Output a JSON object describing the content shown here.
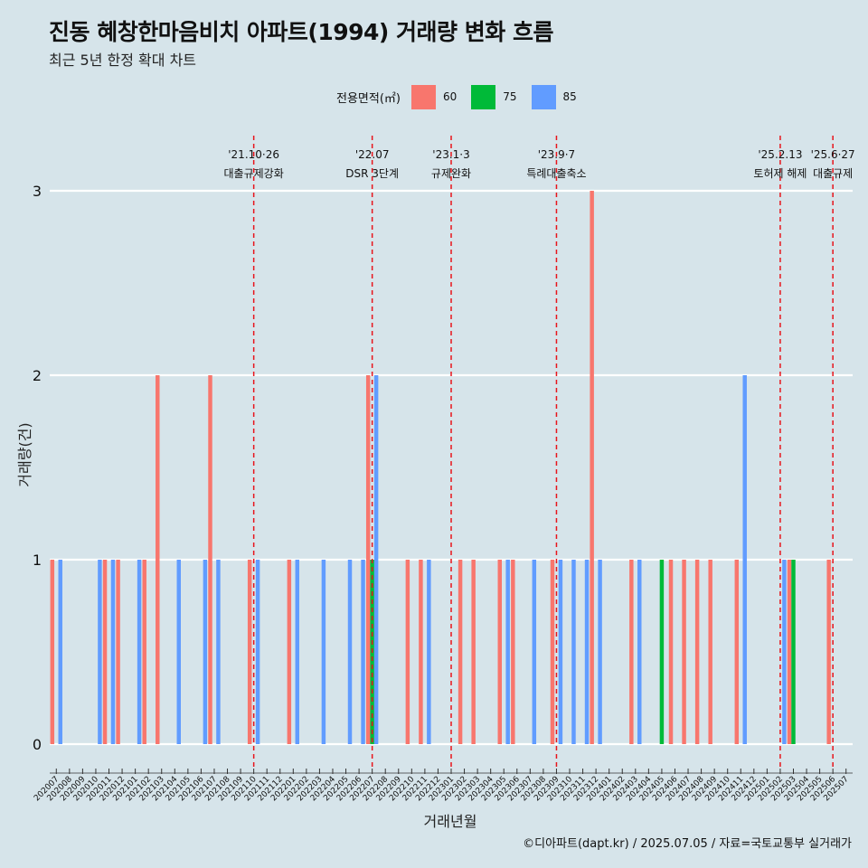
{
  "title": "진동 혜창한마음비치 아파트(1994) 거래량 변화 흐름",
  "subtitle": "최근 5년 한정 확대 차트",
  "caption": "©디아파트(dapt.kr) / 2025.07.05 / 자료=국토교통부 실거래가",
  "legend": {
    "title": "전용면적(㎡)",
    "items": [
      {
        "label": "60",
        "color": "#f8766d"
      },
      {
        "label": "75",
        "color": "#00ba38"
      },
      {
        "label": "85",
        "color": "#619cff"
      }
    ]
  },
  "chart_data": {
    "type": "bar",
    "xlabel": "거래년월",
    "ylabel": "거래량(건)",
    "ylim": [
      0,
      3
    ],
    "yticks": [
      0,
      1,
      2,
      3
    ],
    "grid": true,
    "categories": [
      "202007",
      "202008",
      "202009",
      "202010",
      "202011",
      "202012",
      "202101",
      "202102",
      "202103",
      "202104",
      "202105",
      "202106",
      "202107",
      "202108",
      "202109",
      "202110",
      "202111",
      "202112",
      "202201",
      "202202",
      "202203",
      "202204",
      "202205",
      "202206",
      "202207",
      "202208",
      "202209",
      "202210",
      "202211",
      "202212",
      "202301",
      "202302",
      "202303",
      "202304",
      "202305",
      "202306",
      "202307",
      "202308",
      "202309",
      "202310",
      "202311",
      "202312",
      "202401",
      "202402",
      "202403",
      "202404",
      "202405",
      "202406",
      "202407",
      "202408",
      "202409",
      "202410",
      "202411",
      "202412",
      "202501",
      "202502",
      "202503",
      "202504",
      "202505",
      "202506",
      "202507"
    ],
    "series": [
      {
        "name": "60",
        "color": "#f8766d",
        "values": [
          1,
          0,
          0,
          0,
          1,
          1,
          0,
          1,
          2,
          0,
          0,
          0,
          2,
          0,
          0,
          1,
          0,
          0,
          1,
          0,
          0,
          0,
          0,
          0,
          2,
          0,
          0,
          1,
          1,
          0,
          0,
          1,
          1,
          0,
          1,
          1,
          0,
          0,
          1,
          0,
          0,
          3,
          0,
          0,
          1,
          0,
          0,
          1,
          1,
          1,
          1,
          0,
          1,
          0,
          0,
          0,
          1,
          0,
          0,
          1,
          0
        ]
      },
      {
        "name": "75",
        "color": "#00ba38",
        "values": [
          0,
          0,
          0,
          0,
          0,
          0,
          0,
          0,
          0,
          0,
          0,
          0,
          0,
          0,
          0,
          0,
          0,
          0,
          0,
          0,
          0,
          0,
          0,
          0,
          1,
          0,
          0,
          0,
          0,
          0,
          0,
          0,
          0,
          0,
          0,
          0,
          0,
          0,
          0,
          0,
          0,
          0,
          0,
          0,
          0,
          0,
          1,
          0,
          0,
          0,
          0,
          0,
          0,
          0,
          0,
          0,
          1,
          0,
          0,
          0,
          0
        ]
      },
      {
        "name": "85",
        "color": "#619cff",
        "values": [
          1,
          0,
          0,
          1,
          1,
          0,
          1,
          0,
          0,
          1,
          0,
          1,
          1,
          0,
          0,
          1,
          0,
          0,
          1,
          0,
          1,
          0,
          1,
          1,
          2,
          0,
          0,
          0,
          1,
          0,
          0,
          0,
          0,
          0,
          1,
          0,
          1,
          0,
          1,
          1,
          1,
          1,
          0,
          0,
          1,
          0,
          0,
          0,
          0,
          0,
          0,
          0,
          2,
          0,
          0,
          1,
          0,
          0,
          0,
          0,
          0
        ]
      }
    ],
    "annotations": [
      {
        "date": "202110",
        "line1": "'21.10·26",
        "line2": "대출규제강화"
      },
      {
        "date": "202207",
        "line1": "'22.07",
        "line2": "DSR 3단계"
      },
      {
        "date": "202301",
        "line1": "'23.1·3",
        "line2": "규제완화"
      },
      {
        "date": "202309",
        "line1": "'23.9·7",
        "line2": "특례대출축소"
      },
      {
        "date": "202502",
        "line1": "'25.2.13",
        "line2": "토허제 해제"
      },
      {
        "date": "202506",
        "line1": "'25.6·27",
        "line2": "대출규제"
      }
    ]
  }
}
